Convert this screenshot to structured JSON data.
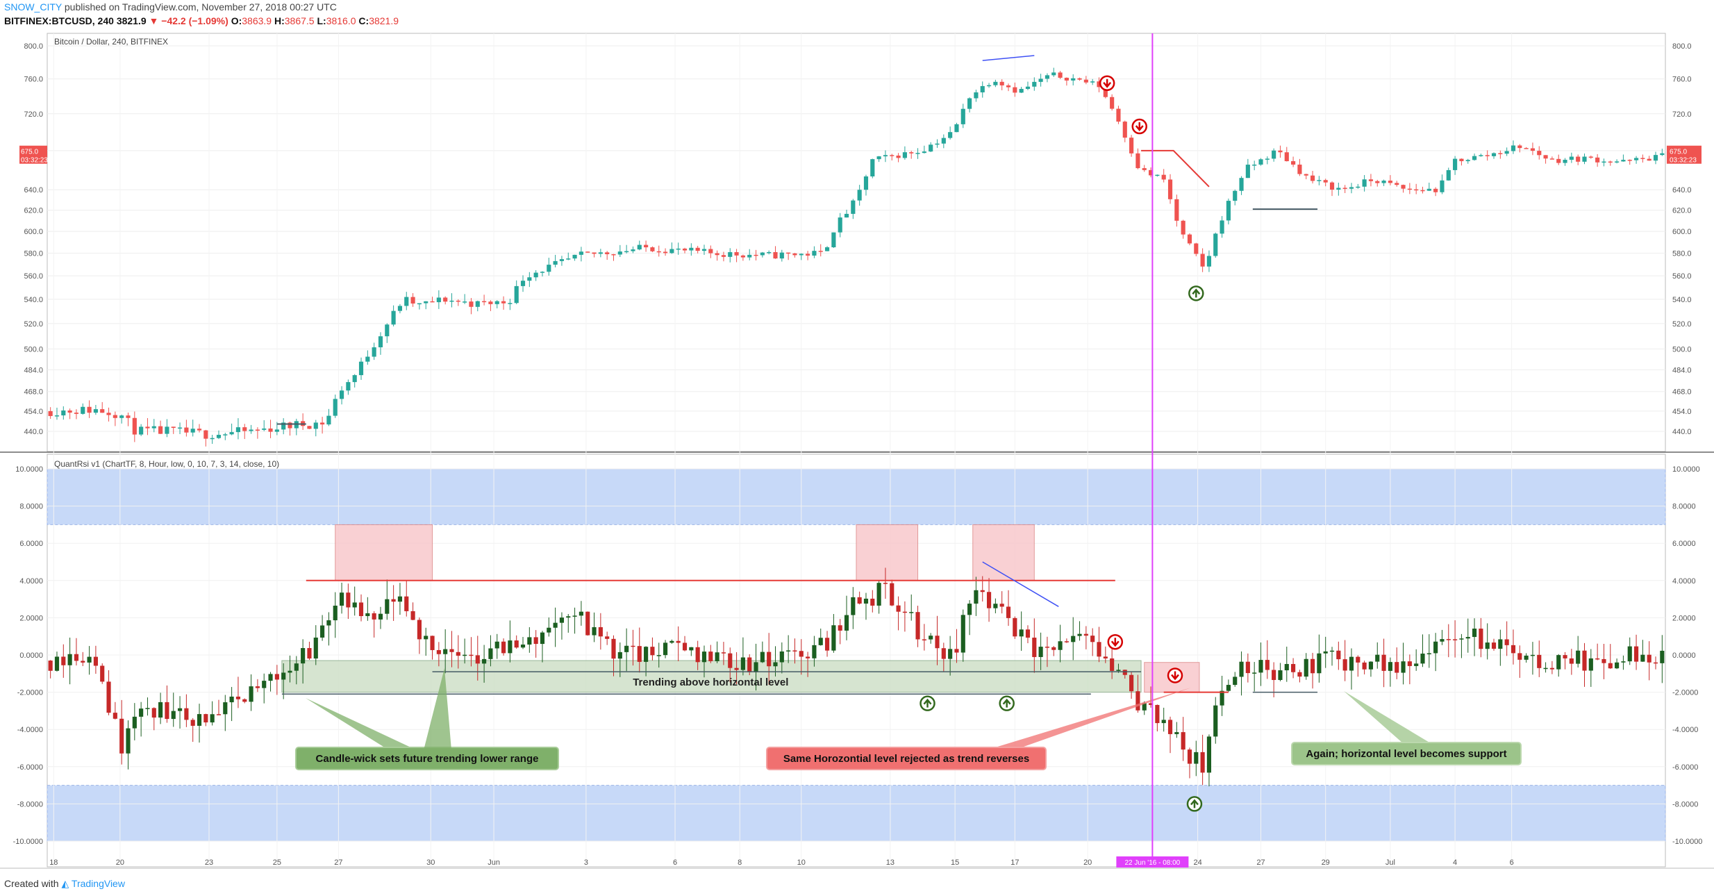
{
  "header": {
    "author": "SNOW_CITY",
    "published": "published on TradingView.com, November 27, 2018 00:27 UTC",
    "symbol": "BITFINEX:BTCUSD, 240",
    "last": "3821.9",
    "change": "−42.2 (−1.09%)",
    "o_label": "O:",
    "o": "3863.9",
    "h_label": "H:",
    "h": "3867.5",
    "l_label": "L:",
    "l": "3816.0",
    "c_label": "C:",
    "c": "3821.9"
  },
  "footer": {
    "created_with": "Created with",
    "brand": "TradingView"
  },
  "colors": {
    "up": "#26a69a",
    "down": "#ef5350",
    "rsi_up": "#1b5e20",
    "rsi_down": "#c62828",
    "band": "#c7d9f8",
    "pink_box": "#f8c8cc",
    "green_box": "#cfe0c8",
    "vline": "#e040fb",
    "blue_line": "#3f51f5",
    "red_line": "#e53935",
    "support": "#455a64"
  },
  "chart_data": [
    {
      "type": "candlestick",
      "title": "Bitcoin / Dollar, 240, BITFINEX",
      "price_label": "675.0",
      "time_label": "03:32:23",
      "yticks": [
        "800.0",
        "760.0",
        "720.0",
        "680.0",
        "640.0",
        "620.0",
        "600.0",
        "580.0",
        "560.0",
        "540.0",
        "520.0",
        "500.0",
        "484.0",
        "468.0",
        "454.0",
        "440.0"
      ],
      "ytick_values": [
        800,
        760,
        720,
        680,
        640,
        620,
        600,
        580,
        560,
        540,
        520,
        500,
        484,
        468,
        454,
        440
      ],
      "scale": "log",
      "ylim": [
        430,
        805
      ],
      "x_range": [
        0,
        1000
      ],
      "close_path": [
        [
          0,
          454
        ],
        [
          30,
          455
        ],
        [
          45,
          452
        ],
        [
          55,
          440
        ],
        [
          75,
          440
        ],
        [
          100,
          438
        ],
        [
          125,
          440
        ],
        [
          150,
          444
        ],
        [
          170,
          446
        ],
        [
          175,
          452
        ],
        [
          180,
          468
        ],
        [
          190,
          480
        ],
        [
          200,
          500
        ],
        [
          210,
          520
        ],
        [
          220,
          540
        ],
        [
          230,
          535
        ],
        [
          245,
          540
        ],
        [
          265,
          536
        ],
        [
          285,
          538
        ],
        [
          295,
          560
        ],
        [
          330,
          578
        ],
        [
          370,
          585
        ],
        [
          410,
          580
        ],
        [
          445,
          578
        ],
        [
          480,
          580
        ],
        [
          485,
          600
        ],
        [
          500,
          630
        ],
        [
          510,
          670
        ],
        [
          540,
          680
        ],
        [
          560,
          700
        ],
        [
          570,
          740
        ],
        [
          585,
          760
        ],
        [
          600,
          745
        ],
        [
          620,
          765
        ],
        [
          640,
          758
        ],
        [
          650,
          752
        ],
        [
          660,
          720
        ],
        [
          675,
          660
        ],
        [
          690,
          650
        ],
        [
          700,
          600
        ],
        [
          715,
          565
        ],
        [
          725,
          610
        ],
        [
          740,
          660
        ],
        [
          760,
          680
        ],
        [
          780,
          650
        ],
        [
          800,
          640
        ],
        [
          820,
          650
        ],
        [
          840,
          640
        ],
        [
          860,
          640
        ],
        [
          870,
          670
        ],
        [
          890,
          675
        ],
        [
          910,
          685
        ],
        [
          930,
          670
        ],
        [
          950,
          672
        ],
        [
          975,
          668
        ],
        [
          1000,
          675
        ]
      ],
      "annotations": [
        {
          "kind": "blue-trendline",
          "points": [
            [
              578,
              782
            ],
            [
              610,
              788
            ]
          ]
        },
        {
          "kind": "red-polyline",
          "points": [
            [
              676,
              680
            ],
            [
              696,
              680
            ],
            [
              718,
              643
            ]
          ]
        },
        {
          "kind": "support-line",
          "points": [
            [
              142,
              445
            ],
            [
              160,
              445
            ]
          ]
        },
        {
          "kind": "support-line",
          "points": [
            [
              745,
              621
            ],
            [
              785,
              621
            ]
          ]
        },
        {
          "kind": "sell-signal",
          "at": [
            655,
            755
          ]
        },
        {
          "kind": "sell-signal",
          "at": [
            675,
            706
          ]
        },
        {
          "kind": "buy-signal",
          "at": [
            710,
            545
          ]
        }
      ]
    },
    {
      "type": "candlestick",
      "title": "QuantRsi v1 (ChartTF, 8, Hour, low, 0, 10, 7, 3, 14, close, 10)",
      "yticks": [
        "10.0000",
        "8.0000",
        "6.0000",
        "4.0000",
        "2.0000",
        "0.0000",
        "-2.0000",
        "-4.0000",
        "-6.0000",
        "-8.0000",
        "-10.0000"
      ],
      "ytick_values": [
        10,
        8,
        6,
        4,
        2,
        0,
        -2,
        -4,
        -6,
        -8,
        -10
      ],
      "ylim": [
        -11.5,
        10.5
      ],
      "bands": [
        [
          7,
          10
        ],
        [
          -10,
          -7
        ]
      ],
      "x_range": [
        0,
        1000
      ],
      "close_path": [
        [
          0,
          -0.3
        ],
        [
          20,
          0.2
        ],
        [
          35,
          -1.5
        ],
        [
          45,
          -5
        ],
        [
          55,
          -3
        ],
        [
          80,
          -3.2
        ],
        [
          100,
          -3.5
        ],
        [
          120,
          -2.5
        ],
        [
          140,
          -1
        ],
        [
          160,
          0
        ],
        [
          170,
          1.5
        ],
        [
          180,
          3
        ],
        [
          200,
          1.5
        ],
        [
          215,
          3
        ],
        [
          230,
          1
        ],
        [
          245,
          0.5
        ],
        [
          255,
          -0.5
        ],
        [
          270,
          0.2
        ],
        [
          290,
          0.5
        ],
        [
          305,
          1
        ],
        [
          320,
          2.5
        ],
        [
          340,
          1
        ],
        [
          355,
          0
        ],
        [
          375,
          0
        ],
        [
          390,
          0.5
        ],
        [
          410,
          0
        ],
        [
          430,
          -0.5
        ],
        [
          450,
          -0.3
        ],
        [
          465,
          0
        ],
        [
          480,
          0.5
        ],
        [
          500,
          3
        ],
        [
          520,
          3.5
        ],
        [
          540,
          1
        ],
        [
          560,
          0
        ],
        [
          575,
          4
        ],
        [
          590,
          2
        ],
        [
          610,
          0
        ],
        [
          625,
          0.5
        ],
        [
          640,
          0.8
        ],
        [
          655,
          -0.5
        ],
        [
          670,
          -2
        ],
        [
          680,
          -3
        ],
        [
          695,
          -4
        ],
        [
          705,
          -5.5
        ],
        [
          715,
          -6
        ],
        [
          725,
          -2
        ],
        [
          735,
          -1
        ],
        [
          750,
          -0.5
        ],
        [
          760,
          -1
        ],
        [
          780,
          -0.5
        ],
        [
          800,
          -0.3
        ],
        [
          820,
          -0.2
        ],
        [
          840,
          -0.5
        ],
        [
          860,
          0.5
        ],
        [
          880,
          1
        ],
        [
          900,
          0.5
        ],
        [
          920,
          -0.5
        ],
        [
          940,
          0
        ],
        [
          960,
          -0.5
        ],
        [
          980,
          0
        ],
        [
          1000,
          0
        ]
      ],
      "annotations": [
        {
          "kind": "pink-box",
          "x": [
            178,
            238
          ],
          "y": [
            4,
            7
          ]
        },
        {
          "kind": "pink-box",
          "x": [
            500,
            538
          ],
          "y": [
            4,
            7
          ]
        },
        {
          "kind": "pink-box",
          "x": [
            572,
            610
          ],
          "y": [
            4,
            7
          ]
        },
        {
          "kind": "pink-box",
          "x": [
            678,
            712
          ],
          "y": [
            -2,
            -0.4
          ]
        },
        {
          "kind": "green-box",
          "x": [
            145,
            676
          ],
          "y": [
            -2,
            -0.3
          ]
        },
        {
          "kind": "red-hline",
          "x": [
            160,
            660
          ],
          "y": 4
        },
        {
          "kind": "red-hline",
          "x": [
            690,
            730
          ],
          "y": -2
        },
        {
          "kind": "support-line",
          "x": [
            145,
            645
          ],
          "y": -2.1
        },
        {
          "kind": "support-line",
          "x": [
            238,
            676
          ],
          "y": -0.9
        },
        {
          "kind": "support-line",
          "x": [
            745,
            785
          ],
          "y": -2
        },
        {
          "kind": "blue-trendline",
          "points": [
            [
              578,
              5
            ],
            [
              625,
              2.6
            ]
          ]
        },
        {
          "kind": "sell-signal",
          "at": [
            660,
            0.7
          ]
        },
        {
          "kind": "sell-signal",
          "at": [
            697,
            -1.1
          ]
        },
        {
          "kind": "buy-signal",
          "at": [
            544,
            -2.6
          ]
        },
        {
          "kind": "buy-signal",
          "at": [
            593,
            -2.6
          ]
        },
        {
          "kind": "buy-signal",
          "at": [
            709,
            -8
          ]
        }
      ],
      "labels": {
        "trending": "Trending above horizontal level",
        "callout_green": "Candle-wick sets future trending lower range",
        "callout_red": "Same Horozontial level rejected as trend reverses",
        "callout_support": "Again; horizontal level becomes support"
      }
    }
  ],
  "xaxis": {
    "ticks": [
      "18",
      "20",
      "23",
      "25",
      "27",
      "30",
      "Jun",
      "3",
      "6",
      "8",
      "10",
      "13",
      "15",
      "17",
      "20",
      "22 Jun '16 - 08:00",
      "24",
      "27",
      "29",
      "Jul",
      "4",
      "6"
    ],
    "tick_positions": [
      4,
      45,
      100,
      142,
      180,
      237,
      276,
      333,
      388,
      428,
      466,
      521,
      561,
      598,
      643,
      683,
      711,
      750,
      790,
      830,
      870,
      905
    ],
    "highlight_index": 15,
    "cursor_x": 683
  }
}
